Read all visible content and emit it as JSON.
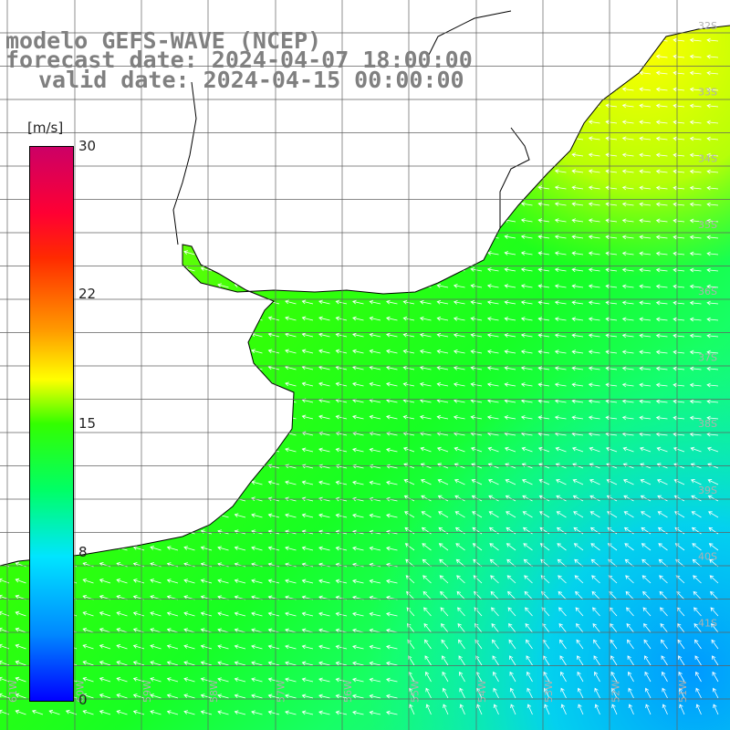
{
  "titles": {
    "model": "modelo GEFS-WAVE (NCEP)",
    "forecast": "forecast date: 2024-04-07 18:00:00",
    "valid": "valid date: 2024-04-15 00:00:00"
  },
  "colorbar": {
    "unit": "[m/s]",
    "ticks": [
      {
        "label": "30",
        "value": 30
      },
      {
        "label": "22",
        "value": 22
      },
      {
        "label": "15",
        "value": 15
      },
      {
        "label": "8",
        "value": 8
      },
      {
        "label": "0",
        "value": 0
      }
    ],
    "min": 0,
    "max": 30
  },
  "map": {
    "lat_labels": [
      "32S",
      "33S",
      "34S",
      "35S",
      "36S",
      "37S",
      "38S",
      "39S",
      "40S",
      "41S"
    ],
    "lon_labels": [
      "61W",
      "60W",
      "59W",
      "58W",
      "57W",
      "56W",
      "55W",
      "54W",
      "53W",
      "52W",
      "51W"
    ],
    "colors": {
      "land": "#ffffff",
      "coast": "#000000",
      "grid": "#606060",
      "arrows": "#ffffff",
      "axis_labels": "#b0b0b0"
    }
  }
}
